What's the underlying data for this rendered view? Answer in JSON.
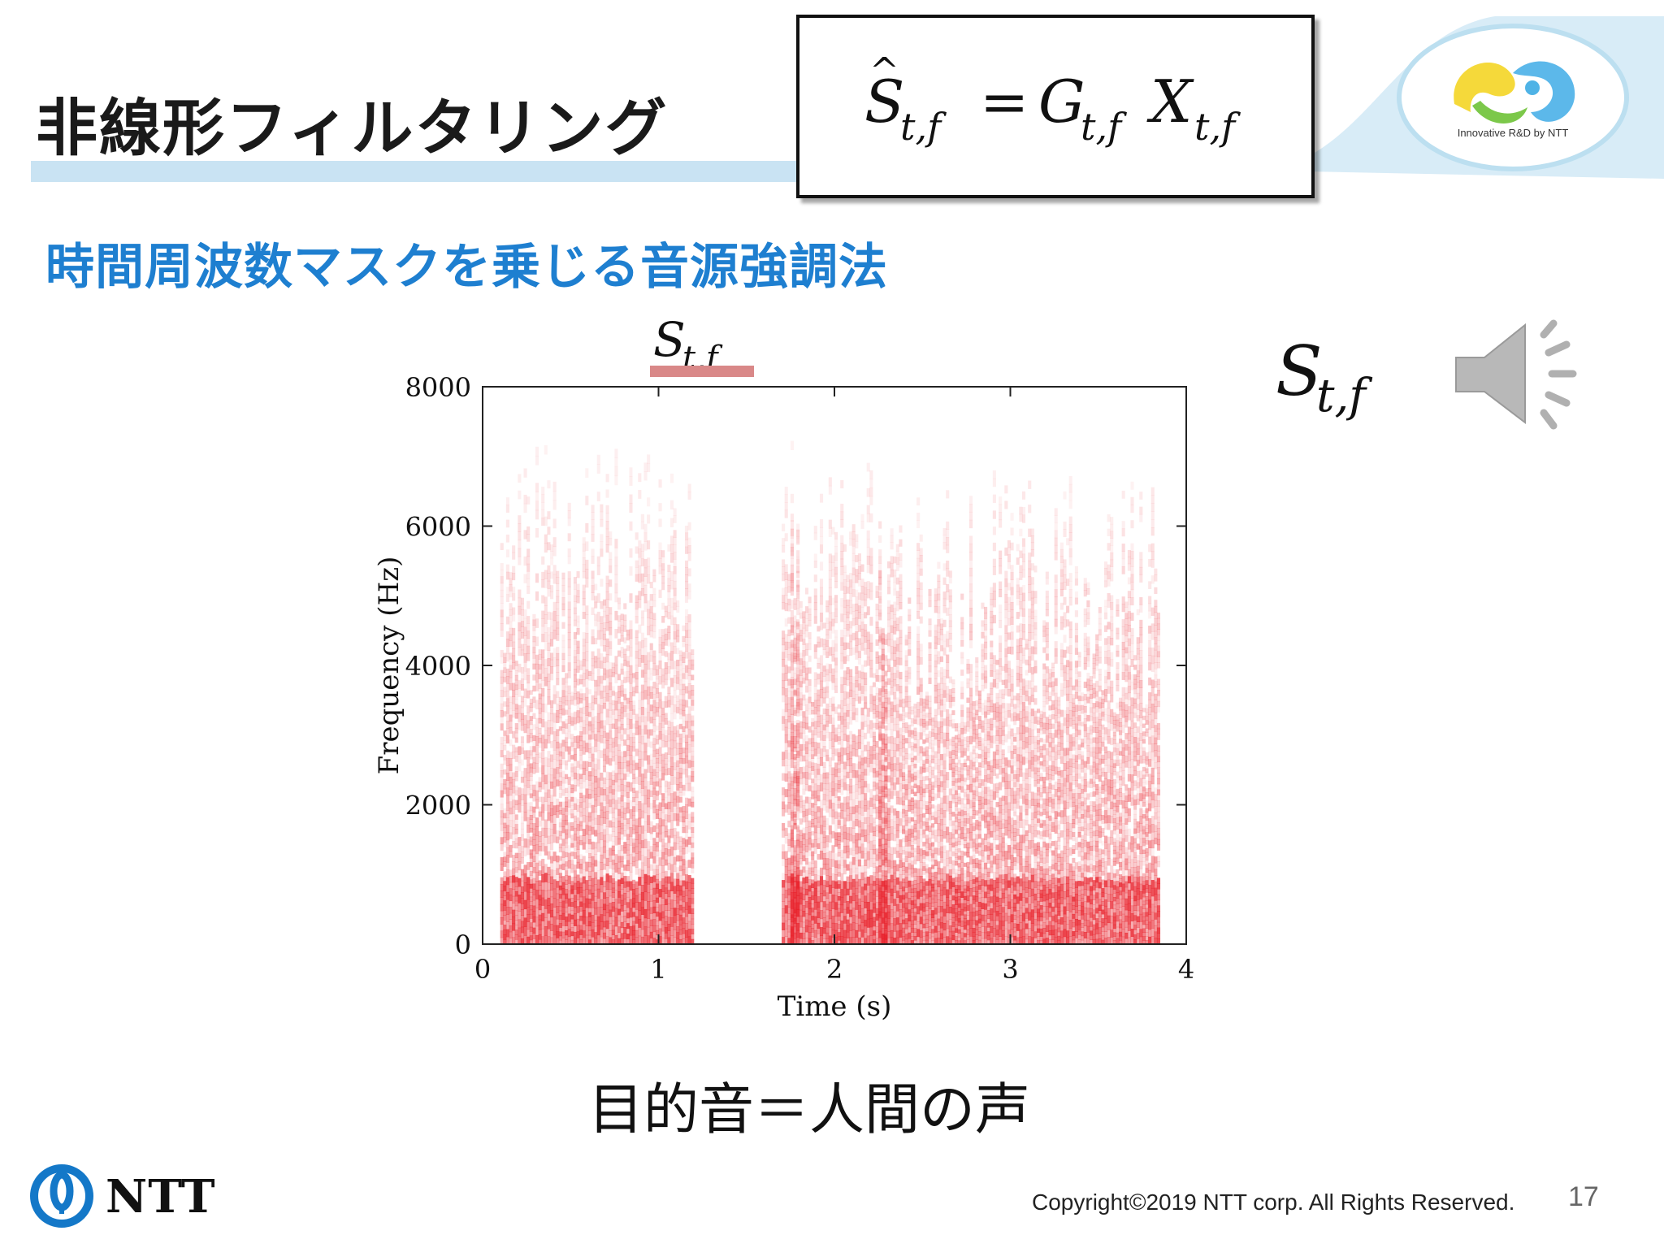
{
  "slide": {
    "title": "非線形フィルタリング",
    "subtitle": "時間周波数マスクを乗じる音源強調法",
    "formula": {
      "lhs_symbol": "S",
      "lhs_sub": "t,f",
      "equals": "=",
      "g_symbol": "G",
      "g_sub": "t,f",
      "x_symbol": "X",
      "x_sub": "t,f"
    },
    "chart_label_symbol": "S",
    "chart_label_sub": "t,f",
    "side_label_symbol": "S",
    "side_label_sub": "t,f",
    "caption": "目的音＝人間の声",
    "logo_tagline": "Innovative R&D by NTT",
    "brand": "NTT",
    "copyright": "Copyright©2019  NTT corp. All Rights Reserved.",
    "page_number": "17",
    "speaker_icon": "speaker-sound-icon",
    "colors": {
      "title_bar": "#c9e3f3",
      "subtitle": "#1e7fd0",
      "spectrogram": "#e8202a",
      "label_underline": "#d98888",
      "ntt_blue": "#1478c8"
    }
  },
  "chart_data": {
    "type": "heatmap",
    "title": "",
    "xlabel": "Time (s)",
    "ylabel": "Frequency (Hz)",
    "xlim": [
      0,
      4
    ],
    "ylim": [
      0,
      8000
    ],
    "x_ticks": [
      "0",
      "1",
      "2",
      "3",
      "4"
    ],
    "y_ticks": [
      "0",
      "2000",
      "4000",
      "6000",
      "8000"
    ],
    "segments": [
      {
        "t_start": 0.1,
        "t_end": 0.9,
        "f_max": 8000
      },
      {
        "t_start": 0.9,
        "t_end": 1.2,
        "f_max": 8000
      },
      {
        "t_start": 1.7,
        "t_end": 1.8,
        "f_max": 8000
      },
      {
        "t_start": 1.75,
        "t_end": 2.3,
        "f_max": 7500
      },
      {
        "t_start": 2.25,
        "t_end": 3.0,
        "f_max": 7000
      },
      {
        "t_start": 3.0,
        "t_end": 3.85,
        "f_max": 7000
      }
    ],
    "grid": false
  }
}
